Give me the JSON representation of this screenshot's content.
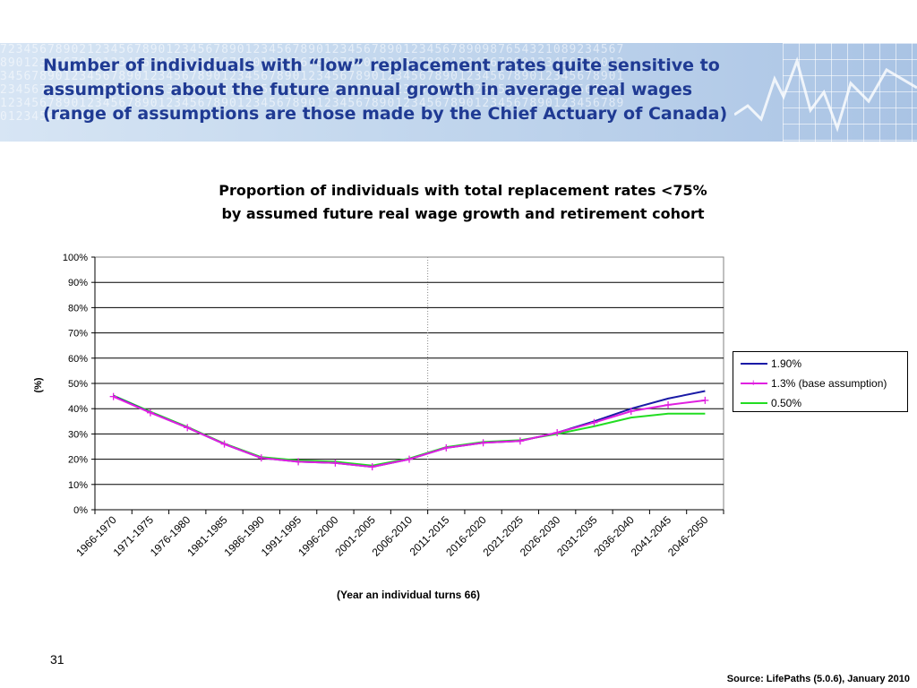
{
  "slide": {
    "title_lines": [
      "Number of individuals with “low” replacement rates quite sensitive to",
      "assumptions about the future annual growth in average real wages",
      "(range of assumptions are those made by the Chief Actuary of Canada)"
    ],
    "page_number": "31",
    "source": "Source:  LifePaths  (5.0.6), January 2010"
  },
  "chart_data": {
    "type": "line",
    "title_lines": [
      "Proportion of individuals with total replacement rates <75%",
      "by assumed future real wage growth and retirement cohort"
    ],
    "xlabel": "(Year an individual turns 66)",
    "ylabel": "(%)",
    "ylim": [
      0,
      100
    ],
    "yticks": [
      "0%",
      "10%",
      "20%",
      "30%",
      "40%",
      "50%",
      "60%",
      "70%",
      "80%",
      "90%",
      "100%"
    ],
    "categories": [
      "1966-1970",
      "1971-1975",
      "1976-1980",
      "1981-1985",
      "1986-1990",
      "1991-1995",
      "1996-2000",
      "2001-2005",
      "2006-2010",
      "2011-2015",
      "2016-2020",
      "2021-2025",
      "2026-2030",
      "2031-2035",
      "2036-2040",
      "2041-2045",
      "2046-2050"
    ],
    "grid": true,
    "legend_position": "right",
    "divider_after_category": "2006-2010",
    "series": [
      {
        "name": "1.90%",
        "color": "#1a1aa6",
        "marker": "none",
        "values": [
          45,
          38.5,
          32.5,
          26,
          20.5,
          19,
          18.5,
          17,
          20,
          24.5,
          26.5,
          27.2,
          30.5,
          35,
          40,
          44,
          47
        ]
      },
      {
        "name": "1.3% (base assumption)",
        "color": "#e020e0",
        "marker": "plus",
        "values": [
          44.8,
          38.4,
          32.5,
          26,
          20.5,
          19,
          18.5,
          17,
          20,
          24.5,
          26.5,
          27.2,
          30.5,
          34.5,
          39,
          41.5,
          43.3
        ]
      },
      {
        "name": "0.50%",
        "color": "#22dd22",
        "marker": "none",
        "values": [
          45.2,
          38.8,
          32.8,
          26.2,
          20.8,
          19.5,
          19,
          17.5,
          20.3,
          24.8,
          26.8,
          27.5,
          30,
          33,
          36.5,
          38,
          38
        ]
      }
    ]
  }
}
